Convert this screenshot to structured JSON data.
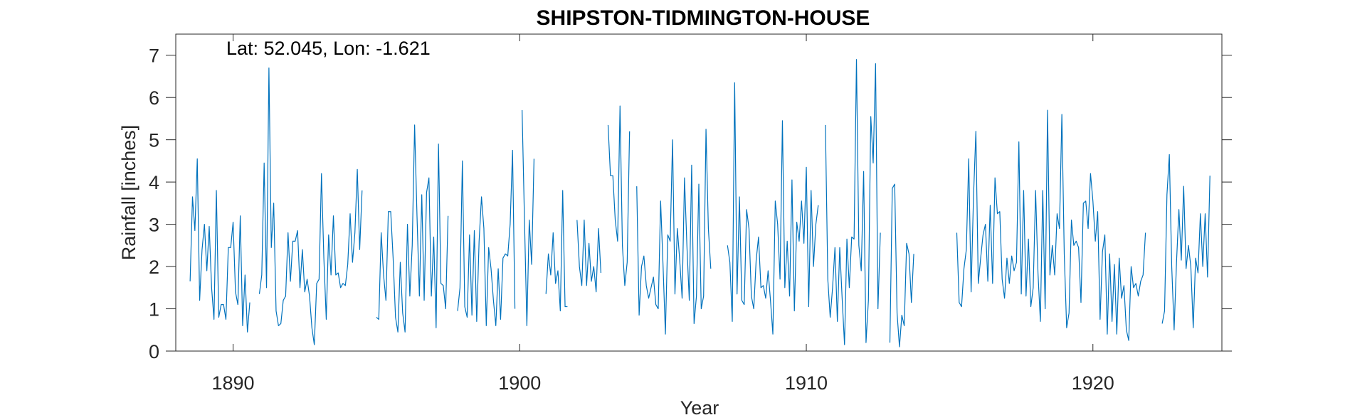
{
  "chart_data": {
    "type": "line",
    "title": "SHIPSTON-TIDMINGTON-HOUSE",
    "annotation": "Lat: 52.045, Lon: -1.621",
    "xlabel": "Year",
    "ylabel": "Rainfall [inches]",
    "xlim": [
      1888,
      1924.5
    ],
    "ylim": [
      0,
      7.5
    ],
    "xticks": [
      1890,
      1900,
      1910,
      1920
    ],
    "yticks": [
      0,
      1,
      2,
      3,
      4,
      5,
      6,
      7
    ],
    "grid": false,
    "line_color": "#0072BD",
    "series": [
      {
        "start_year": 1888.5,
        "step": 0.0833333,
        "values": [
          1.65,
          3.65,
          2.85,
          4.55,
          1.2,
          2.4,
          3.0,
          1.9,
          2.95,
          1.5,
          0.75,
          3.8,
          0.8,
          1.1,
          1.1,
          0.75,
          2.45,
          2.45,
          3.05,
          1.4,
          1.1,
          3.2,
          0.6,
          1.8,
          0.45,
          1.15,
          null,
          null,
          null,
          1.35,
          1.8,
          4.45,
          1.5,
          6.7,
          2.45,
          3.5,
          0.95,
          0.6,
          0.65,
          1.2,
          1.3,
          2.8,
          1.65,
          2.6,
          2.6,
          2.85,
          1.5,
          2.4,
          1.4,
          1.7,
          1.3,
          0.55,
          0.15,
          1.6,
          1.7,
          4.2,
          2.2,
          0.75,
          2.75,
          1.8,
          3.2,
          1.8,
          1.85,
          1.5,
          1.6,
          1.55,
          2.05,
          3.25,
          2.1,
          2.8,
          4.3,
          2.4,
          3.8,
          null,
          null,
          null,
          null,
          null,
          0.8,
          0.75,
          2.8,
          1.8,
          1.2,
          3.3,
          3.3,
          2.2,
          0.8,
          0.45,
          2.1,
          0.9,
          0.45,
          3.0,
          1.3,
          2.5,
          5.35,
          3.2,
          1.3,
          3.7,
          1.2,
          3.75,
          4.1,
          1.3,
          2.7,
          0.55,
          4.9,
          1.6,
          1.55,
          1.0,
          3.2,
          null,
          null,
          null,
          0.95,
          1.5,
          4.5,
          1.05,
          0.8,
          2.75,
          0.85,
          2.85,
          0.7,
          2.6,
          3.65,
          2.9,
          0.6,
          2.45,
          1.95,
          1.2,
          0.6,
          1.95,
          0.75,
          2.2,
          2.3,
          2.25,
          3.0,
          4.75,
          1.0,
          null,
          null,
          5.7,
          3.1,
          0.6,
          3.1,
          2.05,
          4.55,
          null,
          null,
          null,
          null,
          1.35,
          2.3,
          1.8,
          2.8,
          1.6,
          1.9,
          0.95,
          3.8,
          1.05,
          1.05,
          null,
          null,
          null,
          3.1,
          2.0,
          1.55,
          3.1,
          1.55,
          2.55,
          1.65,
          2.0,
          1.4,
          2.9,
          1.85,
          null,
          null,
          5.35,
          4.15,
          4.15,
          3.1,
          2.6,
          5.8,
          2.5,
          1.55,
          2.1,
          5.2,
          null,
          null,
          3.9,
          0.85,
          2.0,
          2.25,
          1.55,
          1.25,
          1.5,
          1.75,
          1.1,
          1.0,
          3.55,
          2.05,
          0.4,
          2.75,
          2.6,
          5.0,
          1.35,
          2.9,
          2.15,
          1.25,
          4.1,
          2.5,
          1.2,
          4.4,
          0.65,
          1.3,
          3.95,
          1.0,
          1.3,
          5.25,
          2.9,
          1.95,
          null,
          null,
          null,
          null,
          null,
          null,
          2.5,
          2.1,
          0.7,
          6.35,
          1.35,
          3.65,
          1.2,
          1.1,
          3.35,
          2.9,
          1.3,
          1.0,
          2.15,
          2.7,
          1.5,
          1.55,
          1.25,
          1.9,
          1.2,
          0.4,
          3.55,
          3.0,
          1.7,
          5.45,
          1.5,
          2.6,
          1.3,
          4.05,
          0.95,
          3.05,
          2.6,
          3.55,
          2.55,
          4.35,
          1.05,
          3.8,
          2.0,
          3.0,
          3.45,
          null,
          null,
          5.35,
          1.7,
          0.8,
          1.5,
          2.45,
          0.7,
          2.45,
          1.25,
          0.15,
          2.65,
          1.5,
          2.7,
          2.65,
          6.9,
          2.5,
          1.9,
          4.25,
          0.2,
          1.2,
          5.55,
          4.45,
          6.8,
          1.0,
          2.8,
          null,
          null,
          null,
          0.2,
          3.85,
          3.95,
          0.9,
          0.1,
          0.85,
          0.6,
          2.55,
          2.3,
          1.15,
          2.3
        ]
      },
      {
        "start_year": 1915.25,
        "step": 0.0833333,
        "values": [
          2.8,
          1.15,
          1.05,
          1.95,
          2.4,
          4.55,
          1.4,
          3.65,
          5.2,
          1.6,
          2.2,
          2.75,
          3.0,
          1.65,
          3.45,
          1.6,
          4.1,
          3.25,
          3.3,
          1.7,
          1.25,
          2.2,
          1.6,
          2.25,
          1.9,
          2.1,
          4.95,
          1.35,
          3.8,
          1.3,
          2.65,
          1.05,
          1.5,
          3.8,
          1.85,
          0.7,
          3.8,
          1.0,
          5.7,
          1.8,
          2.5,
          1.8,
          3.25,
          2.9,
          5.6,
          2.3,
          0.55,
          0.9,
          3.1,
          2.5,
          2.6,
          2.45,
          1.15,
          3.5,
          3.55,
          2.9,
          4.2,
          3.55,
          2.6,
          3.3,
          0.75,
          2.35,
          2.75,
          0.4,
          2.3,
          0.7,
          2.05,
          0.4,
          2.2,
          1.25,
          1.55,
          0.5,
          0.25,
          2.0,
          1.5,
          1.6,
          1.3,
          1.65,
          1.8,
          2.8,
          null,
          null,
          null,
          null,
          null,
          null,
          0.65,
          0.95,
          3.7,
          4.65,
          2.0,
          0.5,
          2.1,
          3.35,
          2.15,
          3.9,
          1.95,
          2.5,
          2.0,
          0.55,
          2.2,
          1.85,
          3.25,
          2.0,
          3.25,
          1.75,
          4.15
        ]
      }
    ]
  }
}
